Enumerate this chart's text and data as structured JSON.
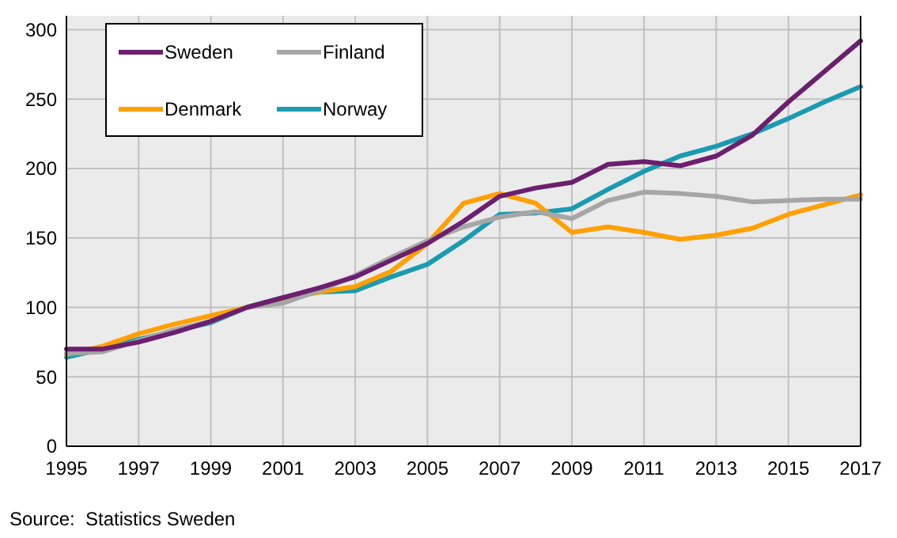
{
  "chart_data": {
    "type": "line",
    "x": [
      1995,
      1996,
      1997,
      1998,
      1999,
      2000,
      2001,
      2002,
      2003,
      2004,
      2005,
      2006,
      2007,
      2008,
      2009,
      2010,
      2011,
      2012,
      2013,
      2014,
      2015,
      2016,
      2017
    ],
    "series": [
      {
        "name": "Sweden",
        "color": "#6b1f6e",
        "values": [
          70,
          70,
          75,
          82,
          90,
          100,
          107,
          114,
          122,
          134,
          146,
          162,
          180,
          186,
          190,
          203,
          205,
          202,
          209,
          224,
          248,
          270,
          292
        ]
      },
      {
        "name": "Finland",
        "color": "#a6a6a6",
        "values": [
          67,
          68,
          76,
          84,
          90,
          100,
          103,
          112,
          123,
          136,
          148,
          158,
          165,
          169,
          164,
          177,
          183,
          182,
          180,
          176,
          177,
          178,
          178
        ]
      },
      {
        "name": "Denmark",
        "color": "#ffa000",
        "values": [
          66,
          72,
          81,
          88,
          94,
          100,
          106,
          111,
          115,
          126,
          146,
          175,
          182,
          175,
          154,
          158,
          154,
          149,
          152,
          157,
          167,
          174,
          181
        ]
      },
      {
        "name": "Norway",
        "color": "#1a9bb0",
        "values": [
          64,
          70,
          77,
          83,
          89,
          100,
          107,
          111,
          112,
          122,
          131,
          148,
          167,
          168,
          171,
          185,
          198,
          209,
          216,
          225,
          236,
          248,
          259
        ]
      }
    ],
    "xlim": [
      1995,
      2017
    ],
    "xticks": [
      1995,
      1997,
      1999,
      2001,
      2003,
      2005,
      2007,
      2009,
      2011,
      2013,
      2015,
      2017
    ],
    "ylim": [
      0,
      310
    ],
    "yticks": [
      0,
      50,
      100,
      150,
      200,
      250,
      300
    ],
    "grid": true,
    "legend": "top left",
    "marker": "none",
    "line_style": "solid",
    "annotations": [
      "Source:  Statistics Sweden"
    ]
  }
}
